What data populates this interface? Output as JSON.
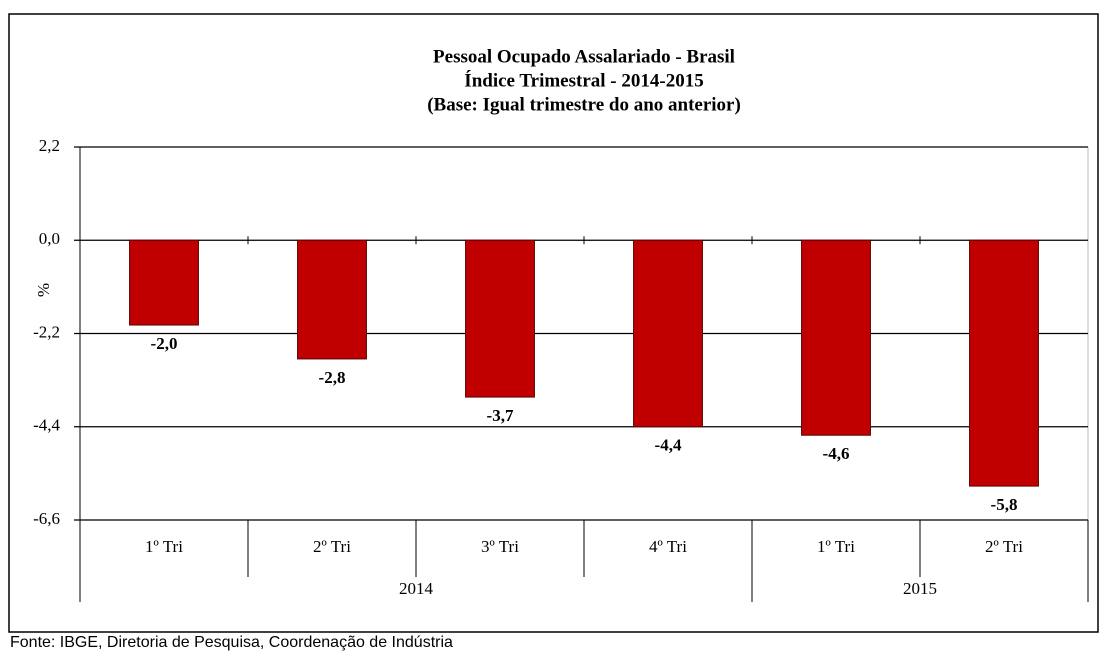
{
  "chart_data": {
    "type": "bar",
    "title": [
      "Pessoal Ocupado Assalariado  - Brasil",
      "Índice Trimestral - 2014-2015",
      "(Base: Igual trimestre do ano anterior)"
    ],
    "y_label": "%",
    "categories": [
      "1º Tri",
      "2º Tri",
      "3º Tri",
      "4º Tri",
      "1º Tri",
      "2º Tri"
    ],
    "group_labels": [
      "2014",
      null,
      null,
      null,
      "2015",
      null
    ],
    "values": [
      -2.0,
      -2.8,
      -3.7,
      -4.4,
      -4.6,
      -5.8
    ],
    "value_labels": [
      "-2,0",
      "-2,8",
      "-3,7",
      "-4,4",
      "-4,6",
      "-5,8"
    ],
    "color": "#c00000",
    "ylim": [
      -6.6,
      2.2
    ],
    "yticks": [
      {
        "value": 2.2,
        "label": "2,2"
      },
      {
        "value": 0,
        "label": "0,0"
      },
      {
        "value": -2.2,
        "label": "-2,2"
      },
      {
        "value": -4.4,
        "label": "-4,4"
      },
      {
        "value": -6.6,
        "label": "-6,6"
      }
    ],
    "grid": true,
    "source": "Fonte: IBGE, Diretoria de Pesquisa, Coordenação de Indústria"
  }
}
